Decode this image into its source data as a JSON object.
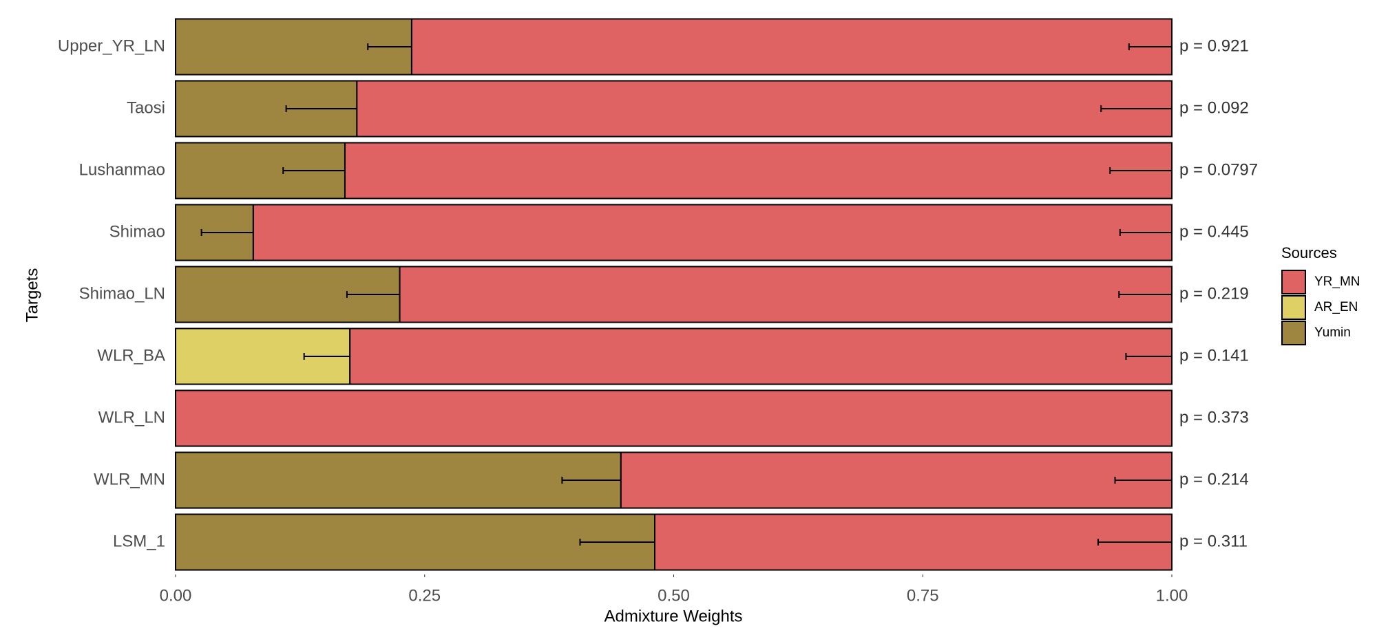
{
  "chart_data": {
    "type": "stacked-bar-horizontal",
    "categories": [
      "Upper_YR_LN",
      "Taosi",
      "Lushanmao",
      "Shimao",
      "Shimao_LN",
      "WLR_BA",
      "WLR_LN",
      "WLR_MN",
      "LSM_1"
    ],
    "series": [
      {
        "name": "YR_MN",
        "color": "#e06363",
        "values": [
          0.763,
          0.818,
          0.83,
          0.922,
          0.775,
          0.825,
          1.0,
          0.553,
          0.519
        ],
        "errors": [
          0.043,
          0.071,
          0.062,
          0.052,
          0.053,
          0.046,
          null,
          0.057,
          0.074
        ]
      },
      {
        "name": "AR_EN",
        "color": "#dfd066",
        "values": [
          null,
          null,
          null,
          null,
          null,
          0.175,
          null,
          null,
          null
        ],
        "errors": [
          null,
          null,
          null,
          null,
          null,
          0.046,
          null,
          null,
          null
        ]
      },
      {
        "name": "Yumin",
        "color": "#9e8641",
        "values": [
          0.237,
          0.182,
          0.17,
          0.078,
          0.225,
          null,
          null,
          0.447,
          0.481
        ],
        "errors": [
          0.044,
          0.071,
          0.062,
          0.052,
          0.053,
          null,
          null,
          0.059,
          0.075
        ]
      }
    ],
    "annotations": [
      "p = 0.921",
      "p = 0.092",
      "p = 0.0797",
      "p = 0.445",
      "p = 0.219",
      "p = 0.141",
      "p = 0.373",
      "p = 0.214",
      "p = 0.311"
    ],
    "xlim": [
      0,
      1
    ],
    "xticks": [
      {
        "value": 0,
        "label": "0.00"
      },
      {
        "value": 0.25,
        "label": "0.25"
      },
      {
        "value": 0.5,
        "label": "0.50"
      },
      {
        "value": 0.75,
        "label": "0.75"
      },
      {
        "value": 1,
        "label": "1.00"
      }
    ],
    "x_label": "Admixture Weights",
    "y_label": "Targets",
    "legend_title": "Sources",
    "legend_position": "right"
  }
}
